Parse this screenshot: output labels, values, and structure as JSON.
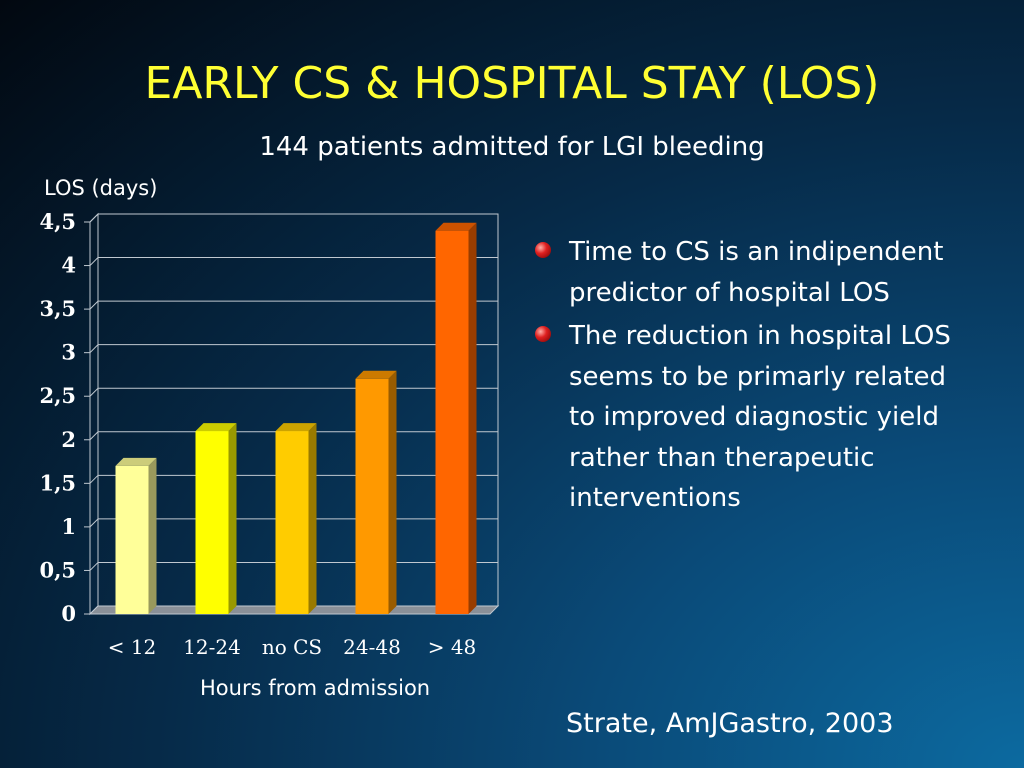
{
  "slide": {
    "title": "EARLY CS & HOSPITAL STAY (LOS)",
    "subtitle": "144 patients admitted for LGI bleeding",
    "bullets": [
      "Time to CS is an indipendent predictor of hospital LOS",
      "The reduction in hospital LOS seems to be primarly related to improved diagnostic yield rather than therapeutic interventions"
    ],
    "citation": "Strate, AmJGastro, 2003"
  },
  "chart_data": {
    "type": "bar",
    "title": "",
    "xlabel": "Hours from admission",
    "ylabel": "LOS (days)",
    "categories": [
      "< 12",
      "12-24",
      "no CS",
      "24-48",
      "> 48"
    ],
    "values": [
      1.7,
      2.1,
      2.1,
      2.7,
      4.4
    ],
    "colors": [
      "#ffff99",
      "#ffff00",
      "#ffcc00",
      "#ff9900",
      "#ff6600"
    ],
    "ylim": [
      0,
      4.5
    ],
    "ytick_labels": [
      "0",
      "0,5",
      "1",
      "1,5",
      "2",
      "2,5",
      "3",
      "3,5",
      "4",
      "4,5"
    ],
    "grid": true,
    "legend": "none"
  }
}
